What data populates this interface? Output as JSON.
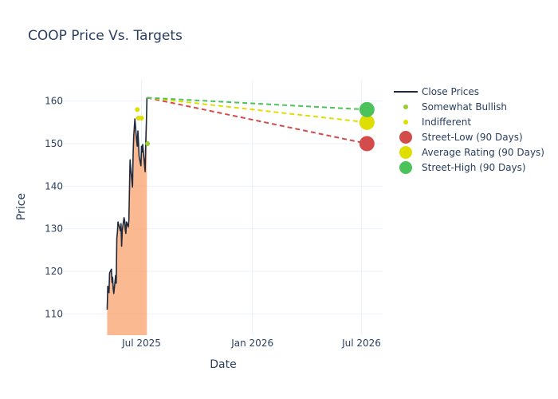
{
  "chart_data": {
    "type": "line",
    "title": "COOP Price Vs. Targets",
    "xlabel": "Date",
    "ylabel": "Price",
    "x_range": [
      "2025-02-22",
      "2026-08-05"
    ],
    "ylim": [
      105,
      165
    ],
    "x_ticks": [
      {
        "date": "2025-07-01",
        "label": "Jul 2025"
      },
      {
        "date": "2026-01-01",
        "label": "Jan 2026"
      },
      {
        "date": "2026-07-01",
        "label": "Jul 2026"
      }
    ],
    "y_ticks": [
      110,
      120,
      130,
      140,
      150,
      160
    ],
    "grid": true,
    "legend_position": "right",
    "series": [
      {
        "name": "Close Prices",
        "kind": "line-area",
        "color": "#1f2a3c",
        "fill_color": "#f9a26c",
        "points": [
          [
            "2025-05-05",
            111.0
          ],
          [
            "2025-05-06",
            116.5
          ],
          [
            "2025-05-07",
            115.2
          ],
          [
            "2025-05-08",
            115.0
          ],
          [
            "2025-05-09",
            119.6
          ],
          [
            "2025-05-12",
            120.5
          ],
          [
            "2025-05-13",
            117.4
          ],
          [
            "2025-05-14",
            118.6
          ],
          [
            "2025-05-15",
            116.0
          ],
          [
            "2025-05-16",
            114.8
          ],
          [
            "2025-05-19",
            119.0
          ],
          [
            "2025-05-20",
            117.2
          ],
          [
            "2025-05-21",
            127.8
          ],
          [
            "2025-05-22",
            129.2
          ],
          [
            "2025-05-23",
            131.6
          ],
          [
            "2025-05-27",
            129.5
          ],
          [
            "2025-05-28",
            131.2
          ],
          [
            "2025-05-29",
            125.9
          ],
          [
            "2025-05-30",
            129.6
          ],
          [
            "2025-06-02",
            132.6
          ],
          [
            "2025-06-03",
            131.9
          ],
          [
            "2025-06-04",
            129.8
          ],
          [
            "2025-06-05",
            128.9
          ],
          [
            "2025-06-06",
            131.6
          ],
          [
            "2025-06-09",
            130.4
          ],
          [
            "2025-06-10",
            132.0
          ],
          [
            "2025-06-11",
            139.2
          ],
          [
            "2025-06-12",
            146.2
          ],
          [
            "2025-06-13",
            144.4
          ],
          [
            "2025-06-16",
            139.8
          ],
          [
            "2025-06-17",
            147.2
          ],
          [
            "2025-06-18",
            151.6
          ],
          [
            "2025-06-20",
            155.8
          ],
          [
            "2025-06-23",
            150.6
          ],
          [
            "2025-06-24",
            149.4
          ],
          [
            "2025-06-25",
            153.0
          ],
          [
            "2025-06-26",
            150.2
          ],
          [
            "2025-06-27",
            147.0
          ],
          [
            "2025-06-30",
            144.8
          ],
          [
            "2025-07-01",
            149.4
          ],
          [
            "2025-07-02",
            148.0
          ],
          [
            "2025-07-03",
            149.8
          ],
          [
            "2025-07-07",
            143.4
          ],
          [
            "2025-07-08",
            150.2
          ],
          [
            "2025-07-09",
            154.6
          ],
          [
            "2025-07-10",
            160.8
          ]
        ]
      },
      {
        "name": "Somewhat Bullish",
        "kind": "markers",
        "color": "#9acd32",
        "points": [
          [
            "2025-07-11",
            150.0
          ]
        ]
      },
      {
        "name": "Indifferent",
        "kind": "markers",
        "color": "#dede00",
        "points": [
          [
            "2025-06-24",
            158.0
          ],
          [
            "2025-06-26",
            156.0
          ],
          [
            "2025-07-01",
            156.0
          ]
        ]
      },
      {
        "name": "Street-Low (90 Days)",
        "kind": "target",
        "color": "#d44b4b",
        "points": [
          [
            "2025-07-10",
            160.8
          ],
          [
            "2026-07-10",
            150.0
          ]
        ]
      },
      {
        "name": "Average Rating (90 Days)",
        "kind": "target",
        "color": "#dede00",
        "points": [
          [
            "2025-07-10",
            160.8
          ],
          [
            "2026-07-10",
            155.0
          ]
        ]
      },
      {
        "name": "Street-High (90 Days)",
        "kind": "target",
        "color": "#4cc35a",
        "points": [
          [
            "2025-07-10",
            160.8
          ],
          [
            "2026-07-10",
            158.0
          ]
        ]
      }
    ]
  }
}
